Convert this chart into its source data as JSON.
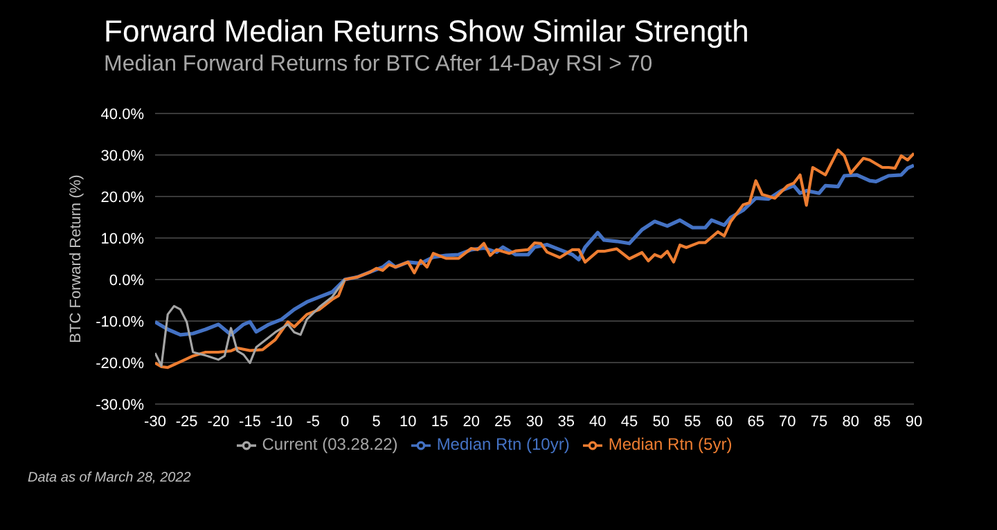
{
  "chart_data": {
    "type": "line",
    "title": "Forward Median Returns Show Similar Strength",
    "subtitle": "Median Forward Returns for BTC After 14-Day RSI > 70",
    "ylabel": "BTC Forward Return (%)",
    "annotations": [
      "Data as of March  28, 2022"
    ],
    "xlim": [
      -30,
      90
    ],
    "xticks": [
      -30,
      -25,
      -20,
      -15,
      -10,
      -5,
      0,
      5,
      10,
      15,
      20,
      25,
      30,
      35,
      40,
      45,
      50,
      55,
      60,
      65,
      70,
      75,
      80,
      85,
      90
    ],
    "ylim": [
      -30,
      40
    ],
    "yticks": [
      {
        "value": -30,
        "label": "-30.0%"
      },
      {
        "value": -20,
        "label": "-20.0%"
      },
      {
        "value": -10,
        "label": "-10.0%"
      },
      {
        "value": 0,
        "label": "0.0%"
      },
      {
        "value": 10,
        "label": "10.0%"
      },
      {
        "value": 20,
        "label": "20.0%"
      },
      {
        "value": 30,
        "label": "30.0%"
      },
      {
        "value": 40,
        "label": "40.0%"
      }
    ],
    "grid": "y",
    "legend": "bottom",
    "marker": "none",
    "line_style": "solid",
    "series": [
      {
        "name": "Median Rtn (10yr)",
        "color": "#4472c4",
        "x": [
          -30,
          -28,
          -26,
          -24,
          -22,
          -20,
          -18,
          -16,
          -15,
          -14,
          -12,
          -10,
          -8,
          -6,
          -4,
          -2,
          0,
          2,
          4,
          6,
          7,
          8,
          10,
          12,
          14,
          16,
          18,
          20,
          22,
          24,
          25,
          27,
          29,
          30,
          32,
          34,
          35,
          36,
          37,
          38,
          40,
          41,
          43,
          45,
          47,
          49,
          51,
          53,
          55,
          57,
          58,
          60,
          61,
          63,
          65,
          67,
          69,
          71,
          72,
          73,
          75,
          76,
          78,
          79,
          81,
          83,
          84,
          86,
          88,
          89,
          90
        ],
        "values": [
          -10.2,
          -12,
          -13.3,
          -13,
          -12,
          -10.8,
          -13.3,
          -10.8,
          -10.2,
          -12.6,
          -10.8,
          -9.6,
          -7.2,
          -5.4,
          -4.2,
          -3,
          0,
          0.6,
          1.8,
          3,
          4.2,
          3,
          4.2,
          3.9,
          5.4,
          5.8,
          6,
          7.2,
          7.6,
          6.6,
          7.8,
          6,
          6,
          7.8,
          8.4,
          7.2,
          6.6,
          6,
          4.8,
          7.8,
          11.3,
          9.5,
          9.2,
          8.7,
          12,
          14,
          12.9,
          14.3,
          12.5,
          12.5,
          14.3,
          13.1,
          14.9,
          16.7,
          19.6,
          19.4,
          21.4,
          22.6,
          20.8,
          21.4,
          20.8,
          22.6,
          22.4,
          25,
          25.2,
          23.8,
          23.6,
          25,
          25.2,
          26.8,
          27.5
        ]
      },
      {
        "name": "Median Rtn (5yr)",
        "color": "#ed7d31",
        "x": [
          -30,
          -29,
          -28,
          -26,
          -24,
          -22,
          -20,
          -18,
          -17,
          -15,
          -13,
          -11,
          -9,
          -8,
          -6,
          -4,
          -2,
          -1,
          0,
          2,
          4,
          5,
          6,
          7,
          8,
          10,
          11,
          12,
          13,
          14,
          16,
          18,
          20,
          21,
          22,
          23,
          24,
          26,
          27,
          29,
          30,
          31,
          32,
          34,
          36,
          37,
          38,
          40,
          41,
          43,
          45,
          47,
          48,
          49,
          50,
          51,
          52,
          53,
          54,
          56,
          57,
          59,
          60,
          61,
          63,
          64,
          65,
          66,
          68,
          70,
          71,
          72,
          73,
          74,
          76,
          78,
          79,
          80,
          82,
          83,
          85,
          86,
          87,
          88,
          89,
          90
        ],
        "values": [
          -20.1,
          -21,
          -21.2,
          -19.8,
          -18.4,
          -17.5,
          -17.5,
          -17.2,
          -16.5,
          -17.1,
          -16.9,
          -14.5,
          -10.2,
          -11.4,
          -8.4,
          -7.2,
          -4.8,
          -3.9,
          0,
          0.6,
          1.8,
          2.7,
          2.2,
          3.6,
          3,
          4.2,
          1.6,
          4.6,
          3,
          6.3,
          5.1,
          5.1,
          7.5,
          7.2,
          8.7,
          5.8,
          7.2,
          6.3,
          6.9,
          7.2,
          8.8,
          8.7,
          6.6,
          5.3,
          7.2,
          7.2,
          4.2,
          6.8,
          6.8,
          7.4,
          5,
          6.5,
          4.5,
          6,
          5.4,
          6.8,
          4.2,
          8.3,
          7.7,
          8.9,
          8.9,
          11.5,
          10.5,
          13.9,
          18,
          18.5,
          23.8,
          20.5,
          19.6,
          22.6,
          23.2,
          25.2,
          17.9,
          27,
          25.2,
          31.2,
          29.8,
          25.6,
          29.2,
          28.8,
          27,
          27,
          26.8,
          29.8,
          28.8,
          30.4
        ]
      },
      {
        "name": "Current (03.28.22)",
        "color": "#a5a5a5",
        "x": [
          -30,
          -29,
          -28,
          -27,
          -26,
          -25,
          -24,
          -22,
          -20,
          -19,
          -18,
          -17,
          -16,
          -15,
          -14,
          -12,
          -11,
          -9,
          -8,
          -7,
          -6,
          -4,
          -2,
          0
        ],
        "values": [
          -17.7,
          -20.8,
          -8.4,
          -6.4,
          -7.2,
          -10.2,
          -17.5,
          -18.3,
          -19.3,
          -18.4,
          -11.7,
          -17.2,
          -18.1,
          -20.1,
          -16.3,
          -13.9,
          -12.7,
          -10.8,
          -12.7,
          -13.3,
          -9.6,
          -6.6,
          -4.2,
          0
        ]
      }
    ]
  }
}
